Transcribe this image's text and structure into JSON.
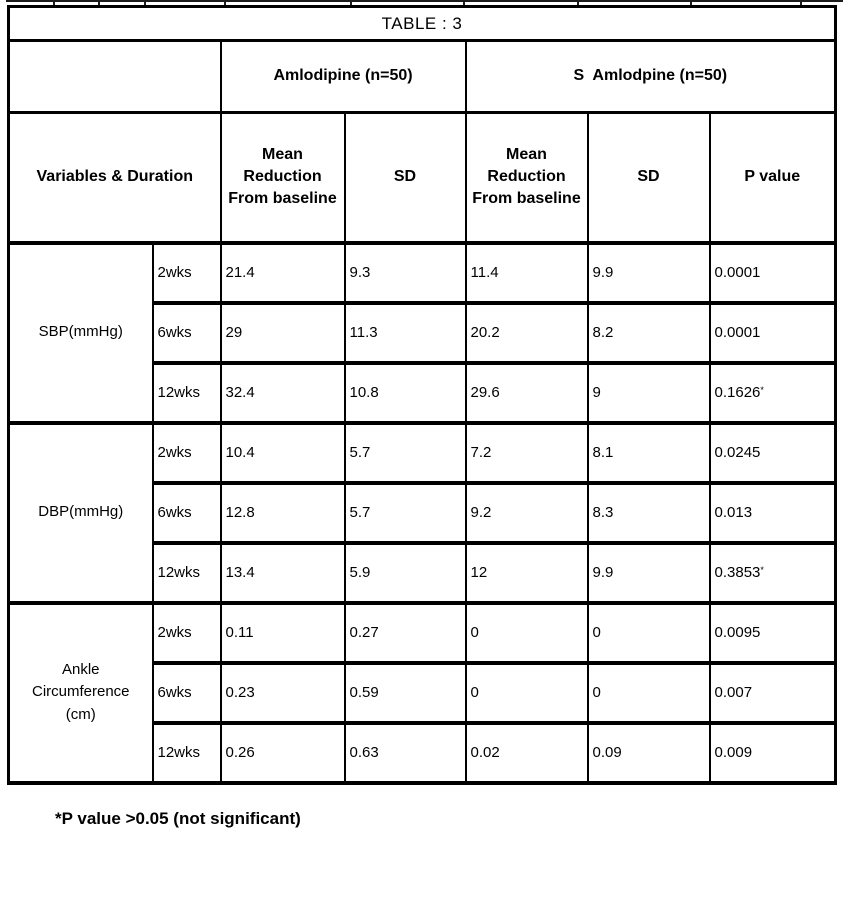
{
  "table": {
    "title": "TABLE : 3",
    "group_row": {
      "group1": "Amlodipine (n=50)",
      "group2": "S  Amlodpine (n=50)"
    },
    "header_row": {
      "variables_duration": "Variables & Duration",
      "mean_reduction": "Mean\nReduction\nFrom baseline",
      "sd": "SD",
      "p_value": "P value"
    },
    "groups": [
      {
        "variable": "SBP(mmHg)",
        "rows": [
          {
            "duration": "2wks",
            "amlodipine_mean": "21.4",
            "amlodipine_sd": "9.3",
            "s_amlodipine_mean": "11.4",
            "s_amlodipine_sd": "9.9",
            "p_value": "0.0001",
            "p_marker": ""
          },
          {
            "duration": "6wks",
            "amlodipine_mean": "29",
            "amlodipine_sd": "11.3",
            "s_amlodipine_mean": "20.2",
            "s_amlodipine_sd": "8.2",
            "p_value": "0.0001",
            "p_marker": ""
          },
          {
            "duration": "12wks",
            "amlodipine_mean": "32.4",
            "amlodipine_sd": "10.8",
            "s_amlodipine_mean": "29.6",
            "s_amlodipine_sd": "9",
            "p_value": "0.1626",
            "p_marker": "*"
          }
        ]
      },
      {
        "variable": "DBP(mmHg)",
        "rows": [
          {
            "duration": "2wks",
            "amlodipine_mean": "10.4",
            "amlodipine_sd": "5.7",
            "s_amlodipine_mean": "7.2",
            "s_amlodipine_sd": "8.1",
            "p_value": "0.0245",
            "p_marker": ""
          },
          {
            "duration": "6wks",
            "amlodipine_mean": "12.8",
            "amlodipine_sd": "5.7",
            "s_amlodipine_mean": "9.2",
            "s_amlodipine_sd": "8.3",
            "p_value": "0.013",
            "p_marker": ""
          },
          {
            "duration": "12wks",
            "amlodipine_mean": "13.4",
            "amlodipine_sd": "5.9",
            "s_amlodipine_mean": "12",
            "s_amlodipine_sd": "9.9",
            "p_value": "0.3853",
            "p_marker": "*"
          }
        ]
      },
      {
        "variable": "Ankle\nCircumference\n(cm)",
        "rows": [
          {
            "duration": "2wks",
            "amlodipine_mean": "0.11",
            "amlodipine_sd": "0.27",
            "s_amlodipine_mean": "0",
            "s_amlodipine_sd": "0",
            "p_value": "0.0095",
            "p_marker": ""
          },
          {
            "duration": "6wks",
            "amlodipine_mean": "0.23",
            "amlodipine_sd": "0.59",
            "s_amlodipine_mean": "0",
            "s_amlodipine_sd": "0",
            "p_value": "0.007",
            "p_marker": ""
          },
          {
            "duration": "12wks",
            "amlodipine_mean": "0.26",
            "amlodipine_sd": "0.63",
            "s_amlodipine_mean": "0.02",
            "s_amlodipine_sd": "0.09",
            "p_value": "0.009",
            "p_marker": ""
          }
        ]
      }
    ]
  },
  "footnote": "*P value >0.05 (not significant)"
}
